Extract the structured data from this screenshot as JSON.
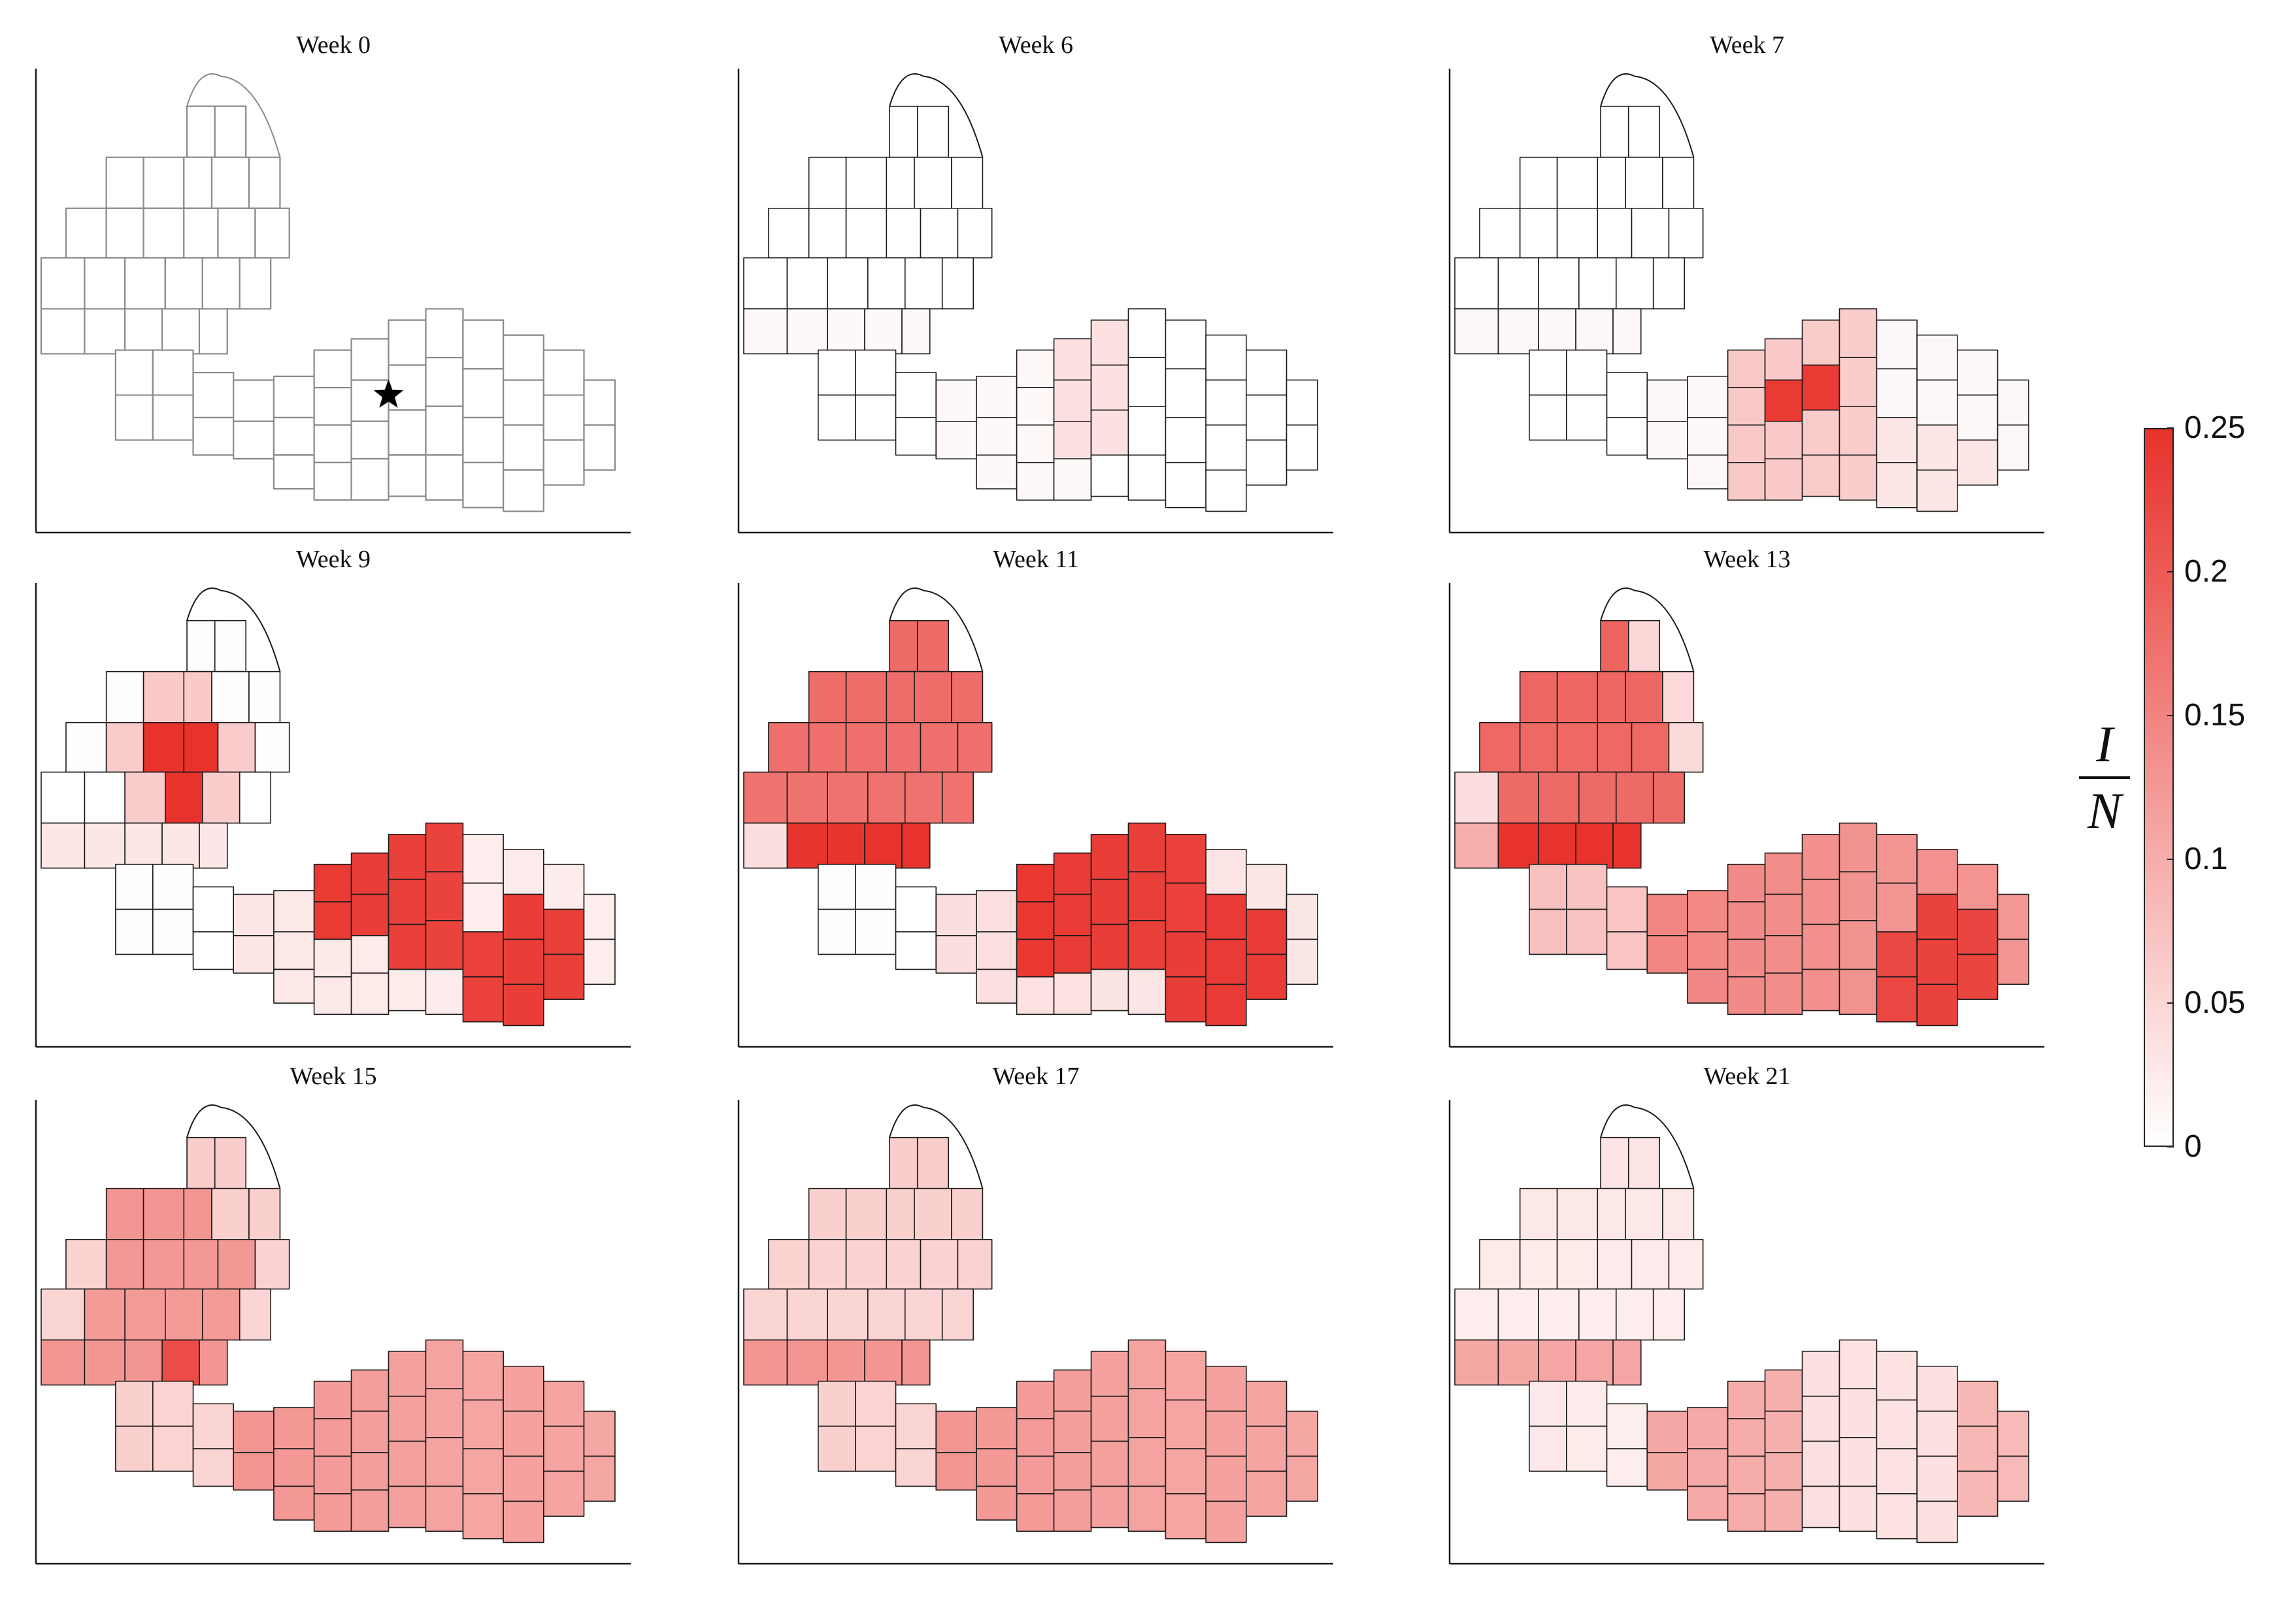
{
  "panels": [
    {
      "title": "Week 0",
      "fill": null,
      "star": true
    },
    {
      "title": "Week 6",
      "fill": "w6"
    },
    {
      "title": "Week 7",
      "fill": "w7"
    },
    {
      "title": "Week 9",
      "fill": "w9"
    },
    {
      "title": "Week 11",
      "fill": "w11"
    },
    {
      "title": "Week 13",
      "fill": "w13"
    },
    {
      "title": "Week 15",
      "fill": "w15"
    },
    {
      "title": "Week 17",
      "fill": "w17"
    },
    {
      "title": "Week 21",
      "fill": "w21"
    }
  ],
  "colorbar": {
    "min": 0,
    "max": 0.25,
    "ticks": [
      "0",
      "0.05",
      "0.1",
      "0.15",
      "0.2",
      "0.25"
    ],
    "tick_values": [
      0,
      0.05,
      0.1,
      0.15,
      0.2,
      0.25
    ],
    "label_numerator": "I",
    "label_denominator": "N",
    "low_color": "#ffffff",
    "high_color": "#e8322c"
  },
  "colors": {
    "county_outline_initial": "#8a8a8a",
    "county_outline": "#1a1a1a"
  },
  "marker": {
    "icon": "star-icon"
  }
}
